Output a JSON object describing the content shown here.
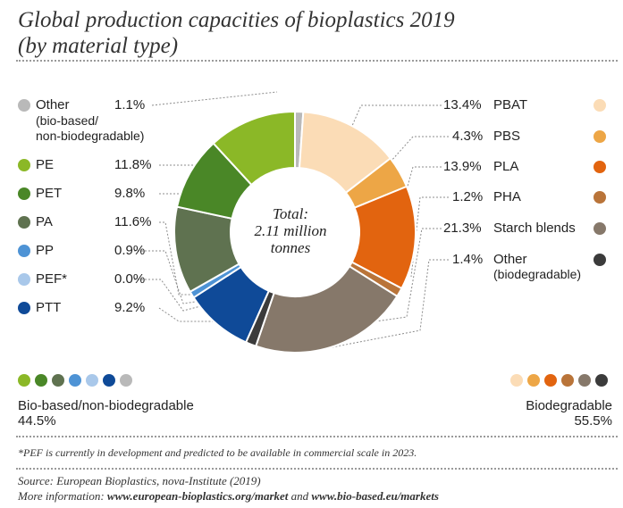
{
  "title_line1": "Global production capacities of bioplastics 2019",
  "title_line2": "(by material type)",
  "chart_data": {
    "type": "pie",
    "variant": "donut",
    "title": "Global production capacities of bioplastics 2019 (by material type)",
    "center_label": [
      "Total:",
      "2.11 million",
      "tonnes"
    ],
    "slices": [
      {
        "key": "other_bb",
        "label": "Other",
        "sublabel": "(bio-based/ non-biodegradable)",
        "value": 1.1,
        "pct_label": "1.1%",
        "color": "#b9b9b9",
        "group": "bio-based"
      },
      {
        "key": "pbat",
        "label": "PBAT",
        "value": 13.4,
        "pct_label": "13.4%",
        "color": "#fbdcb6",
        "group": "biodegradable"
      },
      {
        "key": "pbs",
        "label": "PBS",
        "value": 4.3,
        "pct_label": "4.3%",
        "color": "#eda646",
        "group": "biodegradable"
      },
      {
        "key": "pla",
        "label": "PLA",
        "value": 13.9,
        "pct_label": "13.9%",
        "color": "#e2640f",
        "group": "biodegradable"
      },
      {
        "key": "pha",
        "label": "PHA",
        "value": 1.2,
        "pct_label": "1.2%",
        "color": "#b97439",
        "group": "biodegradable"
      },
      {
        "key": "starch",
        "label": "Starch blends",
        "value": 21.3,
        "pct_label": "21.3%",
        "color": "#86786a",
        "group": "biodegradable"
      },
      {
        "key": "other_bd",
        "label": "Other",
        "sublabel": "(biodegradable)",
        "value": 1.4,
        "pct_label": "1.4%",
        "color": "#3b3b3b",
        "group": "biodegradable"
      },
      {
        "key": "ptt",
        "label": "PTT",
        "value": 9.2,
        "pct_label": "9.2%",
        "color": "#0f4a98",
        "group": "bio-based"
      },
      {
        "key": "pef",
        "label": "PEF*",
        "value": 0.0,
        "pct_label": "0.0%",
        "color": "#a9c8ea",
        "group": "bio-based"
      },
      {
        "key": "pp",
        "label": "PP",
        "value": 0.9,
        "pct_label": "0.9%",
        "color": "#4e93d5",
        "group": "bio-based"
      },
      {
        "key": "pa",
        "label": "PA",
        "value": 11.6,
        "pct_label": "11.6%",
        "color": "#5f7250",
        "group": "bio-based"
      },
      {
        "key": "pet",
        "label": "PET",
        "value": 9.8,
        "pct_label": "9.8%",
        "color": "#4a8727",
        "group": "bio-based"
      },
      {
        "key": "pe",
        "label": "PE",
        "value": 11.8,
        "pct_label": "11.8%",
        "color": "#8bb827",
        "group": "bio-based"
      }
    ],
    "groups": [
      {
        "name": "Bio-based/non-biodegradable",
        "value": 44.5,
        "pct_label": "44.5%"
      },
      {
        "name": "Biodegradable",
        "value": 55.5,
        "pct_label": "55.5%"
      }
    ]
  },
  "group_swatches_left": [
    "#8bb827",
    "#4a8727",
    "#5f7250",
    "#4e93d5",
    "#a9c8ea",
    "#0f4a98",
    "#b9b9b9"
  ],
  "group_swatches_right": [
    "#fbdcb6",
    "#eda646",
    "#e2640f",
    "#b97439",
    "#86786a",
    "#3b3b3b"
  ],
  "footnote": "*PEF is currently in development and predicted to be available in commercial scale in 2023.",
  "source_line": "Source: European Bioplastics, nova-Institute (2019)",
  "more_info_prefix": "More information: ",
  "more_info_link1": "www.european-bioplastics.org/market",
  "more_info_and": " and ",
  "more_info_link2": "www.bio-based.eu/markets"
}
